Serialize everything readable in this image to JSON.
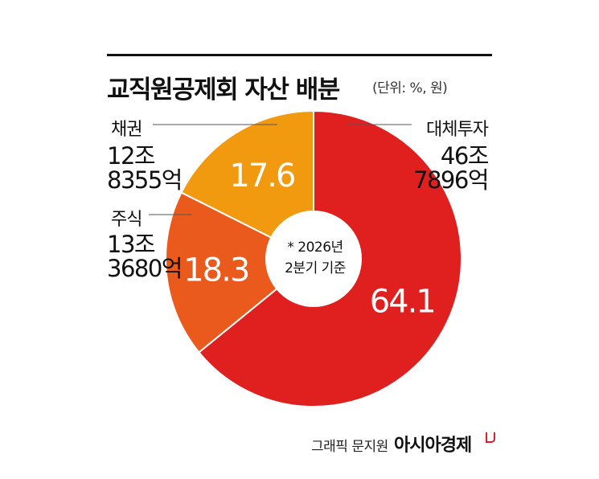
{
  "title": "교직원공제회 자산 배분",
  "unit": "(단위: %, 원)",
  "center_note": [
    "* 2026년",
    "2분기 기준"
  ],
  "credit": "그래픽 문지원",
  "brand": "아시아경제",
  "chart_data": {
    "type": "donut",
    "title": "교직원공제회 자산 배분",
    "unit": "(단위: %, 원)",
    "slices": [
      {
        "name": "대체투자",
        "value": 64.1,
        "amount": [
          "46조",
          "7896억"
        ],
        "color": "#e01f1f"
      },
      {
        "name": "주식",
        "value": 18.3,
        "amount": [
          "13조",
          "3680억"
        ],
        "color": "#ea5a1d"
      },
      {
        "name": "채권",
        "value": 17.6,
        "amount": [
          "12조",
          "8355억"
        ],
        "color": "#f29a0f"
      }
    ]
  }
}
